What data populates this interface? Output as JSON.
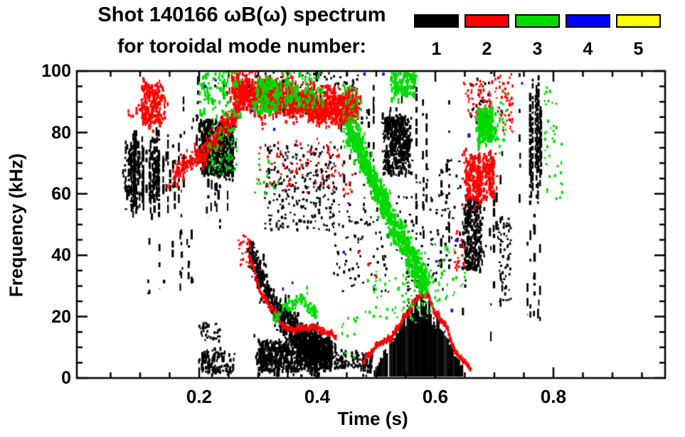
{
  "title_line1": "Shot 140166 ωB(ω) spectrum",
  "title_line2": "for toroidal mode number:",
  "chart_data": {
    "type": "scatter",
    "title": "Shot 140166 ωB(ω) spectrum for toroidal mode number: 1-5",
    "xlabel": "Time (s)",
    "ylabel": "Frequency (kHz)",
    "xlim": [
      0,
      0.99
    ],
    "ylim": [
      0,
      100
    ],
    "grid": false,
    "legend_position": "top-right",
    "x_major_ticks": [
      {
        "v": 0.2,
        "label": "0.2"
      },
      {
        "v": 0.4,
        "label": "0.4"
      },
      {
        "v": 0.6,
        "label": "0.6"
      },
      {
        "v": 0.8,
        "label": "0.8"
      }
    ],
    "x_minor_step": 0.05,
    "y_major_ticks": [
      {
        "v": 0,
        "label": "0"
      },
      {
        "v": 20,
        "label": "20"
      },
      {
        "v": 40,
        "label": "40"
      },
      {
        "v": 60,
        "label": "60"
      },
      {
        "v": 80,
        "label": "80"
      },
      {
        "v": 100,
        "label": "100"
      }
    ],
    "y_minor_step": 5,
    "series": [
      {
        "mode": 1,
        "label": "1",
        "color": "#000000"
      },
      {
        "mode": 2,
        "label": "2",
        "color": "#ff0000"
      },
      {
        "mode": 3,
        "label": "3",
        "color": "#00d900"
      },
      {
        "mode": 4,
        "label": "4",
        "color": "#0000ff"
      },
      {
        "mode": 5,
        "label": "5",
        "color": "#ffff00"
      }
    ],
    "features": [
      {
        "mode": 1,
        "kind": "vstreaks",
        "t": [
          0.075,
          0.168
        ],
        "f": [
          52,
          82
        ],
        "streaks": 48,
        "density": 0.72,
        "seed": 1
      },
      {
        "mode": 1,
        "kind": "vstreaks",
        "t": [
          0.112,
          0.205
        ],
        "f": [
          22,
          54
        ],
        "streaks": 26,
        "density": 0.2,
        "seed": 2
      },
      {
        "mode": 1,
        "kind": "vstreaks",
        "t": [
          0.165,
          0.197
        ],
        "f": [
          50,
          96
        ],
        "streaks": 7,
        "density": 0.26,
        "seed": 3
      },
      {
        "mode": 1,
        "kind": "cloud",
        "t": [
          0.203,
          0.258
        ],
        "f": [
          66,
          84
        ],
        "n": 620,
        "seed": 4
      },
      {
        "mode": 1,
        "kind": "vstreaks",
        "t": [
          0.207,
          0.252
        ],
        "f": [
          48,
          66
        ],
        "streaks": 14,
        "density": 0.3,
        "seed": 5
      },
      {
        "mode": 1,
        "kind": "vstreaks",
        "t": [
          0.195,
          0.275
        ],
        "f": [
          88,
          100
        ],
        "streaks": 11,
        "density": 0.3,
        "seed": 6
      },
      {
        "mode": 1,
        "kind": "cloud",
        "t": [
          0.285,
          0.425
        ],
        "path": [
          [
            0.285,
            42
          ],
          [
            0.33,
            22
          ],
          [
            0.38,
            12
          ],
          [
            0.425,
            9
          ]
        ],
        "spread": 6,
        "n": 800,
        "seed": 7
      },
      {
        "mode": 1,
        "kind": "cloud",
        "t": [
          0.3,
          0.425
        ],
        "f": [
          2,
          12
        ],
        "n": 780,
        "seed": 8
      },
      {
        "mode": 1,
        "kind": "cloud",
        "t": [
          0.43,
          0.47
        ],
        "f": [
          3,
          9
        ],
        "n": 80,
        "sparse": true,
        "seed": 9
      },
      {
        "mode": 1,
        "kind": "cloud",
        "t": [
          0.475,
          0.493
        ],
        "f": [
          2,
          8
        ],
        "n": 60,
        "seed": 10
      },
      {
        "mode": 1,
        "kind": "cloud",
        "t": [
          0.31,
          0.43
        ],
        "f": [
          48,
          76
        ],
        "n": 250,
        "sparse": true,
        "seed": 11
      },
      {
        "mode": 1,
        "kind": "cloud",
        "t": [
          0.512,
          0.557
        ],
        "f": [
          66,
          85
        ],
        "n": 400,
        "seed": 12
      },
      {
        "mode": 1,
        "kind": "vstreaks",
        "t": [
          0.44,
          0.5
        ],
        "f": [
          55,
          100
        ],
        "streaks": 9,
        "density": 0.33,
        "seed": 13
      },
      {
        "mode": 1,
        "kind": "vstreaks",
        "t": [
          0.535,
          0.565
        ],
        "f": [
          88,
          100
        ],
        "streaks": 4,
        "density": 0.3,
        "seed": 14
      },
      {
        "mode": 1,
        "kind": "cloud",
        "t": [
          0.42,
          0.655
        ],
        "f": [
          28,
          72
        ],
        "n": 240,
        "sparse": true,
        "seed": 15
      },
      {
        "mode": 1,
        "kind": "vstreaks",
        "t": [
          0.565,
          0.628
        ],
        "f": [
          28,
          100
        ],
        "streaks": 9,
        "density": 0.38,
        "seed": 16
      },
      {
        "mode": 1,
        "kind": "fill",
        "path": [
          [
            0.497,
            3
          ],
          [
            0.52,
            11
          ],
          [
            0.545,
            17
          ],
          [
            0.575,
            25
          ],
          [
            0.6,
            20
          ],
          [
            0.625,
            12
          ],
          [
            0.648,
            3
          ]
        ],
        "seed": 17
      },
      {
        "mode": 1,
        "kind": "cloud",
        "t": [
          0.203,
          0.255
        ],
        "f": [
          2,
          9
        ],
        "n": 110,
        "seed": 18
      },
      {
        "mode": 1,
        "kind": "cloud",
        "t": [
          0.2,
          0.235
        ],
        "f": [
          12,
          18
        ],
        "n": 40,
        "sparse": true,
        "seed": 19
      },
      {
        "mode": 1,
        "kind": "vstreaks",
        "t": [
          0.635,
          0.655
        ],
        "f": [
          15,
          80
        ],
        "streaks": 5,
        "density": 0.14,
        "seed": 20
      },
      {
        "mode": 1,
        "kind": "cloud",
        "t": [
          0.652,
          0.678
        ],
        "f": [
          35,
          60
        ],
        "n": 300,
        "seed": 21
      },
      {
        "mode": 1,
        "kind": "vstreaks",
        "t": [
          0.69,
          0.715
        ],
        "f": [
          8,
          88
        ],
        "streaks": 7,
        "density": 0.2,
        "seed": 22
      },
      {
        "mode": 1,
        "kind": "vstreaks",
        "t": [
          0.74,
          0.75
        ],
        "f": [
          50,
          100
        ],
        "streaks": 2,
        "density": 0.25,
        "seed": 23
      },
      {
        "mode": 1,
        "kind": "vstreaks",
        "t": [
          0.755,
          0.783
        ],
        "f": [
          55,
          100
        ],
        "streaks": 12,
        "density": 0.8,
        "seed": 24
      },
      {
        "mode": 1,
        "kind": "vstreaks",
        "t": [
          0.755,
          0.783
        ],
        "f": [
          14,
          55
        ],
        "streaks": 8,
        "density": 0.3,
        "seed": 25
      },
      {
        "mode": 1,
        "kind": "cloud",
        "t": [
          0.28,
          0.47
        ],
        "f": [
          85,
          100
        ],
        "n": 150,
        "sparse": true,
        "seed": 26
      },
      {
        "mode": 1,
        "kind": "cloud",
        "t": [
          0.07,
          0.102
        ],
        "f": [
          55,
          72
        ],
        "n": 40,
        "sparse": true,
        "seed": 27
      },
      {
        "mode": 1,
        "kind": "cloud",
        "t": [
          0.705,
          0.728
        ],
        "f": [
          25,
          52
        ],
        "n": 55,
        "sparse": true,
        "seed": 28
      },
      {
        "mode": 1,
        "kind": "cloud",
        "t": [
          0.66,
          0.695
        ],
        "f": [
          82,
          100
        ],
        "n": 35,
        "sparse": true,
        "seed": 29
      },
      {
        "mode": 2,
        "kind": "cloud",
        "t": [
          0.103,
          0.143
        ],
        "f": [
          83,
          96
        ],
        "n": 220,
        "seed": 31
      },
      {
        "mode": 2,
        "kind": "cloud",
        "t": [
          0.155,
          0.28
        ],
        "path": [
          [
            0.155,
            66
          ],
          [
            0.21,
            74
          ],
          [
            0.28,
            92
          ]
        ],
        "spread": 4,
        "n": 320,
        "seed": 32
      },
      {
        "mode": 2,
        "kind": "cloud",
        "t": [
          0.255,
          0.468
        ],
        "path": [
          [
            0.255,
            95
          ],
          [
            0.32,
            92
          ],
          [
            0.4,
            89
          ],
          [
            0.468,
            88
          ]
        ],
        "spread": 7,
        "n": 1500,
        "seed": 33
      },
      {
        "mode": 2,
        "kind": "cloud",
        "t": [
          0.3,
          0.46
        ],
        "f": [
          60,
          78
        ],
        "n": 85,
        "sparse": true,
        "seed": 34
      },
      {
        "mode": 2,
        "kind": "curve",
        "path": [
          [
            0.285,
            39
          ],
          [
            0.302,
            30
          ],
          [
            0.318,
            24
          ],
          [
            0.335,
            19
          ],
          [
            0.355,
            16
          ],
          [
            0.375,
            15
          ],
          [
            0.395,
            15.5
          ],
          [
            0.415,
            13
          ],
          [
            0.432,
            14
          ]
        ],
        "thickness": 1.6,
        "n": 240,
        "seed": 35
      },
      {
        "mode": 2,
        "kind": "curve",
        "path": [
          [
            0.478,
            5
          ],
          [
            0.5,
            9
          ],
          [
            0.525,
            14
          ],
          [
            0.55,
            21
          ],
          [
            0.575,
            28
          ],
          [
            0.59,
            25
          ],
          [
            0.61,
            19
          ],
          [
            0.63,
            11
          ],
          [
            0.648,
            4
          ],
          [
            0.66,
            2.5
          ]
        ],
        "thickness": 1.6,
        "n": 300,
        "seed": 36
      },
      {
        "mode": 2,
        "kind": "cloud",
        "t": [
          0.652,
          0.7
        ],
        "f": [
          58,
          73
        ],
        "n": 330,
        "seed": 37
      },
      {
        "mode": 2,
        "kind": "cloud",
        "t": [
          0.648,
          0.7
        ],
        "f": [
          84,
          98
        ],
        "n": 60,
        "sparse": true,
        "seed": 38
      },
      {
        "mode": 2,
        "kind": "cloud",
        "t": [
          0.7,
          0.732
        ],
        "f": [
          80,
          99
        ],
        "n": 50,
        "sparse": true,
        "seed": 39
      },
      {
        "mode": 2,
        "kind": "cloud",
        "t": [
          0.265,
          0.29
        ],
        "f": [
          36,
          48
        ],
        "n": 30,
        "sparse": true,
        "seed": 40
      },
      {
        "mode": 2,
        "kind": "cloud",
        "t": [
          0.633,
          0.65
        ],
        "f": [
          35,
          48
        ],
        "n": 25,
        "sparse": true,
        "seed": 41
      },
      {
        "mode": 2,
        "kind": "dots",
        "points": [
          [
            0.47,
            41
          ],
          [
            0.487,
            37
          ],
          [
            0.5,
            33
          ]
        ],
        "seed": 42
      },
      {
        "mode": 3,
        "kind": "cloud",
        "t": [
          0.2,
          0.27
        ],
        "f": [
          85,
          100
        ],
        "n": 110,
        "seed": 51
      },
      {
        "mode": 3,
        "kind": "cloud",
        "t": [
          0.295,
          0.335
        ],
        "f": [
          86,
          98
        ],
        "n": 170,
        "seed": 52
      },
      {
        "mode": 3,
        "kind": "cloud",
        "t": [
          0.215,
          0.265
        ],
        "f": [
          66,
          82
        ],
        "n": 85,
        "sparse": true,
        "seed": 53
      },
      {
        "mode": 3,
        "kind": "cloud",
        "t": [
          0.34,
          0.41
        ],
        "f": [
          88,
          100
        ],
        "n": 130,
        "seed": 54
      },
      {
        "mode": 3,
        "kind": "cloud",
        "t": [
          0.452,
          0.585
        ],
        "path": [
          [
            0.452,
            83
          ],
          [
            0.48,
            71
          ],
          [
            0.505,
            60
          ],
          [
            0.53,
            50
          ],
          [
            0.555,
            41
          ],
          [
            0.585,
            30
          ]
        ],
        "spread": 4,
        "spread_end": 7,
        "n": 1050,
        "seed": 55
      },
      {
        "mode": 3,
        "kind": "cloud",
        "t": [
          0.443,
          0.475
        ],
        "f": [
          75,
          96
        ],
        "n": 80,
        "sparse": true,
        "seed": 56
      },
      {
        "mode": 3,
        "kind": "cloud",
        "t": [
          0.525,
          0.567
        ],
        "f": [
          92,
          100
        ],
        "n": 170,
        "seed": 57
      },
      {
        "mode": 3,
        "kind": "cloud",
        "t": [
          0.48,
          0.6
        ],
        "f": [
          18,
          35
        ],
        "n": 75,
        "sparse": true,
        "seed": 58
      },
      {
        "mode": 3,
        "kind": "cloud",
        "t": [
          0.325,
          0.4
        ],
        "path": [
          [
            0.325,
            19
          ],
          [
            0.35,
            24
          ],
          [
            0.375,
            25
          ],
          [
            0.4,
            21
          ]
        ],
        "spread": 2,
        "n": 90,
        "seed": 59
      },
      {
        "mode": 3,
        "kind": "cloud",
        "t": [
          0.672,
          0.697
        ],
        "f": [
          77,
          88
        ],
        "n": 260,
        "seed": 60
      },
      {
        "mode": 3,
        "kind": "cloud",
        "t": [
          0.6,
          0.655
        ],
        "f": [
          25,
          45
        ],
        "n": 30,
        "sparse": true,
        "seed": 61
      },
      {
        "mode": 3,
        "kind": "cloud",
        "t": [
          0.785,
          0.815
        ],
        "f": [
          58,
          95
        ],
        "n": 40,
        "sparse": true,
        "seed": 62
      },
      {
        "mode": 3,
        "kind": "cloud",
        "t": [
          0.29,
          0.335
        ],
        "f": [
          60,
          72
        ],
        "n": 16,
        "sparse": true,
        "seed": 63
      },
      {
        "mode": 3,
        "kind": "cloud",
        "t": [
          0.705,
          0.722
        ],
        "f": [
          72,
          95
        ],
        "n": 22,
        "sparse": true,
        "seed": 64
      },
      {
        "mode": 3,
        "kind": "cloud",
        "t": [
          0.44,
          0.47
        ],
        "f": [
          6,
          20
        ],
        "n": 12,
        "sparse": true,
        "seed": 65
      },
      {
        "mode": 4,
        "kind": "dots",
        "points": [
          [
            0.21,
            95
          ],
          [
            0.228,
            97
          ],
          [
            0.29,
            87
          ],
          [
            0.327,
            81
          ],
          [
            0.445,
            41
          ],
          [
            0.342,
            29
          ],
          [
            0.358,
            31
          ],
          [
            0.48,
            99
          ],
          [
            0.512,
            99
          ],
          [
            0.602,
            38
          ],
          [
            0.628,
            22
          ],
          [
            0.637,
            45
          ],
          [
            0.657,
            79
          ],
          [
            0.747,
            96
          ],
          [
            0.712,
            87
          ]
        ],
        "seed": 71
      }
    ]
  }
}
